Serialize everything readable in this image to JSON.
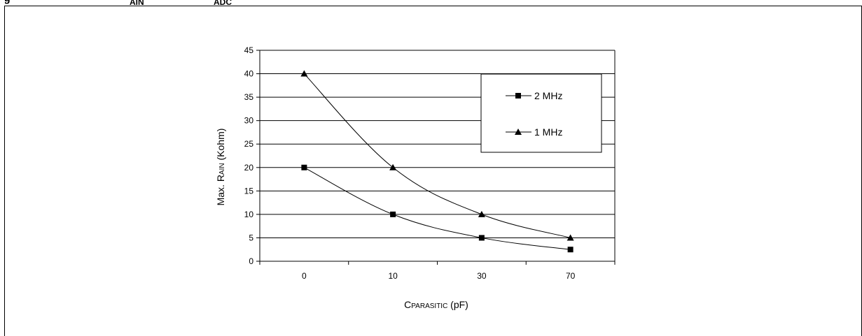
{
  "caption": {
    "prefix": "g",
    "sub1": "AIN",
    "sub2": "ADC"
  },
  "chart_data": {
    "type": "line",
    "categories": [
      "0",
      "10",
      "30",
      "70"
    ],
    "series": [
      {
        "name": "2 MHz",
        "marker": "square",
        "values": [
          20,
          10,
          5,
          2.5
        ]
      },
      {
        "name": "1 MHz",
        "marker": "triangle",
        "values": [
          40,
          20,
          10,
          5
        ]
      }
    ],
    "ylim": [
      0,
      45
    ],
    "yticks": [
      0,
      5,
      10,
      15,
      20,
      25,
      30,
      35,
      40,
      45
    ],
    "ylabel": {
      "prefix": "Max. R",
      "sub": "AIN",
      "suffix": " (Kohm)"
    },
    "xlabel": {
      "prefix": "C",
      "sub": "PARASITIC",
      "suffix": " (pF)"
    },
    "grid": true,
    "legend_position": "top-right",
    "line_color": "#000000"
  }
}
